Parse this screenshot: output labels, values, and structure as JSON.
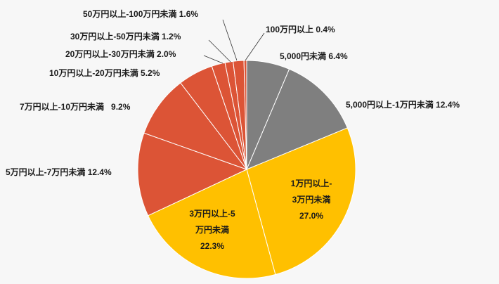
{
  "chart_data": {
    "type": "pie",
    "start": "12 o'clock, clockwise",
    "slices": [
      {
        "label": "5,000円未満",
        "value": 6.4,
        "value_label": "6.4%",
        "color": "#7f7f7f"
      },
      {
        "label": "5,000円以上-1万円未満",
        "value": 12.4,
        "value_label": "12.4%",
        "color": "#7f7f7f"
      },
      {
        "label": "1万円以上-3万円未満",
        "label_lines": [
          "1万円以上-",
          "3万円未満"
        ],
        "value": 27.0,
        "value_label": "27.0%",
        "color": "#ffc000"
      },
      {
        "label": "3万円以上-5万円未満",
        "label_lines": [
          "3万円以上-5",
          "万円未満"
        ],
        "value": 22.3,
        "value_label": "22.3%",
        "color": "#ffc000"
      },
      {
        "label": "5万円以上-7万円未満",
        "value": 12.4,
        "value_label": "12.4%",
        "color": "#dc5436"
      },
      {
        "label": "7万円以上-10万円未満",
        "value": 9.2,
        "value_label": "9.2%",
        "color": "#dc5436"
      },
      {
        "label": "10万円以上-20万円未満",
        "value": 5.2,
        "value_label": "5.2%",
        "color": "#dc5436"
      },
      {
        "label": "20万円以上-30万円未満",
        "value": 2.0,
        "value_label": "2.0%",
        "color": "#dc5436"
      },
      {
        "label": "30万円以上-50万円未満",
        "value": 1.2,
        "value_label": "1.2%",
        "color": "#dc5436"
      },
      {
        "label": "50万円以上-100万円未満",
        "value": 1.6,
        "value_label": "1.6%",
        "color": "#dc5436"
      },
      {
        "label": "100万円以上",
        "value": 0.4,
        "value_label": "0.4%",
        "color": "#dc5436"
      }
    ]
  }
}
